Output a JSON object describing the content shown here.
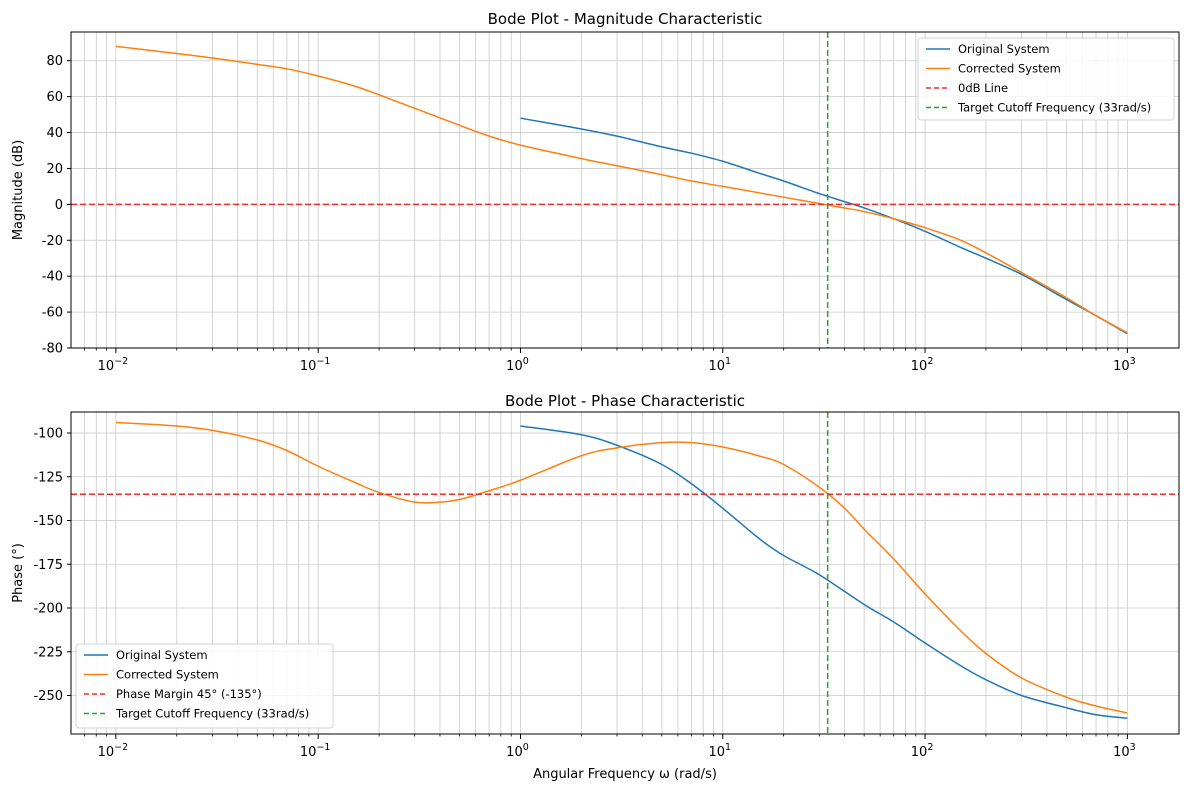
{
  "chart_data": [
    {
      "type": "line",
      "title": "Bode Plot - Magnitude Characteristic",
      "xlabel": "",
      "ylabel": "Magnitude (dB)",
      "xscale": "log",
      "xlim": [
        0.006,
        1800
      ],
      "ylim": [
        -80,
        96
      ],
      "yticks": [
        -80,
        -60,
        -40,
        -20,
        0,
        20,
        40,
        60,
        80
      ],
      "ytick_labels": [
        "-80",
        "-60",
        "-40",
        "-20",
        "0",
        "20",
        "40",
        "60",
        "80"
      ],
      "xtick_labels": [
        {
          "base": "10",
          "exp": "−2"
        },
        {
          "base": "10",
          "exp": "−1"
        },
        {
          "base": "10",
          "exp": "0"
        },
        {
          "base": "10",
          "exp": "1"
        },
        {
          "base": "10",
          "exp": "2"
        },
        {
          "base": "10",
          "exp": "3"
        }
      ],
      "grid": true,
      "legend_position": "top-right",
      "series": [
        {
          "name": "Original System",
          "color": "#1f77b4",
          "style": "solid",
          "points": [
            [
              1,
              48
            ],
            [
              2,
              42
            ],
            [
              3,
              38
            ],
            [
              5,
              32
            ],
            [
              7,
              28.5
            ],
            [
              10,
              24
            ],
            [
              15,
              17.5
            ],
            [
              20,
              13
            ],
            [
              30,
              6
            ],
            [
              40,
              1.5
            ],
            [
              50,
              -2
            ],
            [
              70,
              -8
            ],
            [
              100,
              -15
            ],
            [
              150,
              -24
            ],
            [
              200,
              -30
            ],
            [
              300,
              -39
            ],
            [
              500,
              -53
            ],
            [
              700,
              -62
            ],
            [
              1000,
              -72
            ]
          ]
        },
        {
          "name": "Corrected System",
          "color": "#ff7f0e",
          "style": "solid",
          "points": [
            [
              0.01,
              88
            ],
            [
              0.02,
              84
            ],
            [
              0.03,
              81.5
            ],
            [
              0.05,
              78
            ],
            [
              0.07,
              75.5
            ],
            [
              0.1,
              71.5
            ],
            [
              0.15,
              66
            ],
            [
              0.2,
              61
            ],
            [
              0.3,
              53.5
            ],
            [
              0.5,
              44
            ],
            [
              0.7,
              38
            ],
            [
              1,
              33
            ],
            [
              2,
              25.5
            ],
            [
              3,
              21.5
            ],
            [
              5,
              16.5
            ],
            [
              7,
              13
            ],
            [
              10,
              10
            ],
            [
              15,
              6.5
            ],
            [
              20,
              4
            ],
            [
              30,
              0.5
            ],
            [
              40,
              -2
            ],
            [
              50,
              -4
            ],
            [
              70,
              -8
            ],
            [
              100,
              -13
            ],
            [
              150,
              -20
            ],
            [
              200,
              -27
            ],
            [
              300,
              -38
            ],
            [
              500,
              -52
            ],
            [
              700,
              -62
            ],
            [
              1000,
              -71.5
            ]
          ]
        },
        {
          "name": "0dB Line",
          "color": "#e8312d",
          "style": "dashed",
          "orientation": "horizontal",
          "value": 0
        },
        {
          "name": "Target Cutoff Frequency (33rad/s)",
          "color": "#2ca02c",
          "style": "dashed",
          "orientation": "vertical",
          "value": 33
        }
      ]
    },
    {
      "type": "line",
      "title": "Bode Plot - Phase Characteristic",
      "xlabel": "Angular Frequency ω (rad/s)",
      "ylabel": "Phase (°)",
      "xscale": "log",
      "xlim": [
        0.006,
        1800
      ],
      "ylim": [
        -272,
        -88
      ],
      "yticks": [
        -250,
        -225,
        -200,
        -175,
        -150,
        -125,
        -100
      ],
      "ytick_labels": [
        "-250",
        "-225",
        "-200",
        "-175",
        "-150",
        "-125",
        "-100"
      ],
      "xtick_labels": [
        {
          "base": "10",
          "exp": "−2"
        },
        {
          "base": "10",
          "exp": "−1"
        },
        {
          "base": "10",
          "exp": "0"
        },
        {
          "base": "10",
          "exp": "1"
        },
        {
          "base": "10",
          "exp": "2"
        },
        {
          "base": "10",
          "exp": "3"
        }
      ],
      "grid": true,
      "legend_position": "lower-left",
      "series": [
        {
          "name": "Original System",
          "color": "#1f77b4",
          "style": "solid",
          "points": [
            [
              1,
              -96
            ],
            [
              2,
              -101
            ],
            [
              3,
              -107
            ],
            [
              5,
              -118
            ],
            [
              7,
              -129
            ],
            [
              10,
              -143
            ],
            [
              15,
              -160
            ],
            [
              20,
              -170
            ],
            [
              30,
              -181
            ],
            [
              50,
              -198
            ],
            [
              70,
              -208
            ],
            [
              100,
              -220
            ],
            [
              150,
              -233
            ],
            [
              200,
              -241
            ],
            [
              300,
              -250
            ],
            [
              500,
              -257
            ],
            [
              700,
              -261
            ],
            [
              1000,
              -263
            ]
          ]
        },
        {
          "name": "Corrected System",
          "color": "#ff7f0e",
          "style": "solid",
          "points": [
            [
              0.01,
              -94
            ],
            [
              0.02,
              -96
            ],
            [
              0.03,
              -98.5
            ],
            [
              0.05,
              -104
            ],
            [
              0.07,
              -110
            ],
            [
              0.1,
              -119
            ],
            [
              0.15,
              -128
            ],
            [
              0.2,
              -134
            ],
            [
              0.3,
              -139.5
            ],
            [
              0.4,
              -139.5
            ],
            [
              0.5,
              -138
            ],
            [
              0.7,
              -133
            ],
            [
              1,
              -127
            ],
            [
              2,
              -113
            ],
            [
              3,
              -108.5
            ],
            [
              5,
              -105.5
            ],
            [
              7,
              -105.5
            ],
            [
              10,
              -108
            ],
            [
              15,
              -113
            ],
            [
              20,
              -118
            ],
            [
              30,
              -131
            ],
            [
              40,
              -143
            ],
            [
              50,
              -155
            ],
            [
              70,
              -172
            ],
            [
              100,
              -192
            ],
            [
              150,
              -213
            ],
            [
              200,
              -226
            ],
            [
              300,
              -240
            ],
            [
              500,
              -251
            ],
            [
              700,
              -256
            ],
            [
              1000,
              -260
            ]
          ]
        },
        {
          "name": "Phase Margin 45° (-135°)",
          "color": "#e8312d",
          "style": "dashed",
          "orientation": "horizontal",
          "value": -135
        },
        {
          "name": "Target Cutoff Frequency (33rad/s)",
          "color": "#2ca02c",
          "style": "dashed",
          "orientation": "vertical",
          "value": 33
        }
      ]
    }
  ]
}
